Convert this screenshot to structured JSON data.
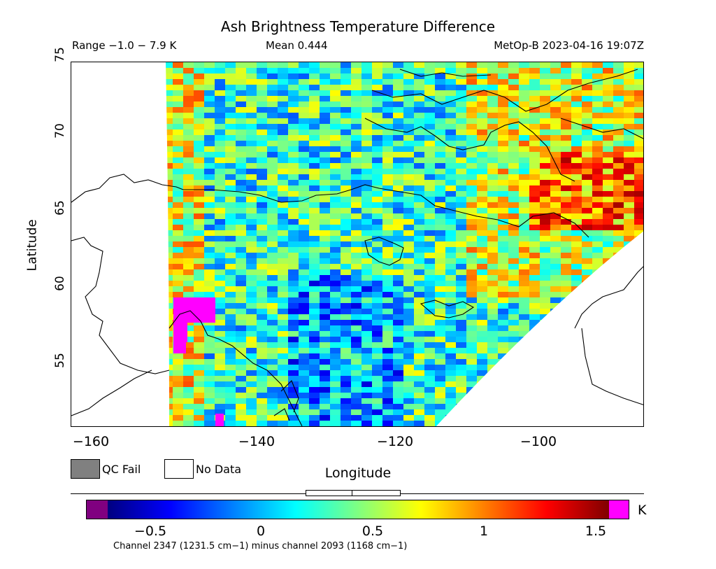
{
  "header": {
    "title": "Ash Brightness Temperature Difference",
    "range": "Range −1.0 − 7.9 K",
    "mean": "Mean 0.444",
    "satellite": "MetOp-B 2023-04-16 19:07Z"
  },
  "axes": {
    "ylabel": "Latitude",
    "xlabel": "Longitude",
    "yticks": [
      "55",
      "60",
      "65",
      "70",
      "75"
    ],
    "xticks": [
      "−160",
      "−140",
      "−120",
      "−100"
    ]
  },
  "legend": {
    "qc_fail": "QC Fail",
    "no_data": "No Data",
    "qc_fail_color": "#808080",
    "no_data_color": "#ffffff"
  },
  "colorbar": {
    "ticks": [
      "−0.5",
      "0",
      "0.5",
      "1",
      "1.5"
    ],
    "unit": "K",
    "underflow_color": "#800080",
    "overflow_color": "#ff00ff",
    "stops": [
      "#000080",
      "#0000ff",
      "#0080ff",
      "#00ffff",
      "#80ff80",
      "#ffff00",
      "#ff8000",
      "#ff0000",
      "#800000"
    ]
  },
  "footnote": "Channel 2347 (1231.5 cm−1) minus channel 2093 (1168 cm−1)",
  "chart_data": {
    "type": "heatmap",
    "title": "Ash Brightness Temperature Difference",
    "xlabel": "Longitude",
    "ylabel": "Latitude",
    "xlim": [
      -165,
      -85
    ],
    "ylim": [
      54.5,
      78.5
    ],
    "value_range": [
      -0.7,
      1.65
    ],
    "units": "K"
  }
}
